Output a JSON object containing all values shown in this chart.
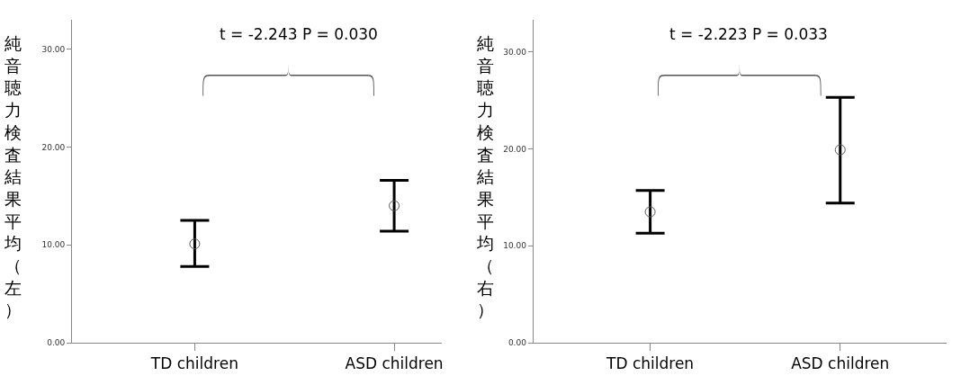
{
  "chart_data": [
    {
      "type": "scatter",
      "ylabel": "純音聴力検査結果平均（左）",
      "categories": [
        "TD children",
        "ASD children"
      ],
      "series": [
        {
          "color": "#555555",
          "values": [
            10.1,
            14.0
          ],
          "errors": [
            [
              7.8,
              12.5
            ],
            [
              11.4,
              16.6
            ]
          ]
        }
      ],
      "ylim": [
        0,
        33
      ],
      "yticks": [
        {
          "value": 0,
          "label": "0.00"
        },
        {
          "value": 10,
          "label": "10.00"
        },
        {
          "value": 20,
          "label": "20.00"
        },
        {
          "value": 30,
          "label": "30.00"
        }
      ],
      "marker": "circle",
      "annotations": [
        "t = -2.243 P = 0.030"
      ]
    },
    {
      "type": "scatter",
      "ylabel": "純音聴力検査結果平均（右）",
      "categories": [
        "TD children",
        "ASD children"
      ],
      "series": [
        {
          "color": "#555555",
          "values": [
            13.5,
            19.9
          ],
          "errors": [
            [
              11.3,
              15.7
            ],
            [
              14.4,
              25.3
            ]
          ]
        }
      ],
      "ylim": [
        0,
        33.3
      ],
      "yticks": [
        {
          "value": 0,
          "label": "0.00"
        },
        {
          "value": 10,
          "label": "10.00"
        },
        {
          "value": 20,
          "label": "20.00"
        },
        {
          "value": 30,
          "label": "30.00"
        }
      ],
      "marker": "circle",
      "annotations": [
        "t = -2.223 P = 0.033"
      ]
    }
  ]
}
